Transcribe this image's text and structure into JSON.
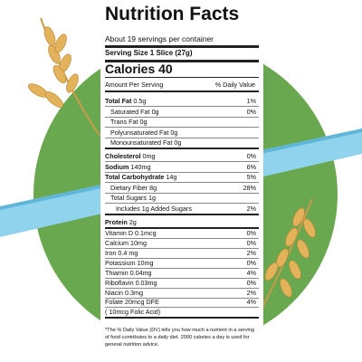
{
  "header": {
    "title": "Nutrition Facts",
    "servings": "About 19 servings per container",
    "serving_size": "Serving Size 1 Slice (27g)",
    "calories": "Calories 40",
    "amount_per_serving": "Amount Per Serving",
    "daily_value_heading": "% Daily Value"
  },
  "rows": [
    {
      "name": "Total Fat",
      "amount": "0.5g",
      "dv": "1%"
    },
    {
      "name": "Saturated Fat",
      "amount": "0g",
      "dv": "0%"
    },
    {
      "name": "Trans Fat",
      "amount": "0g"
    },
    {
      "name": "Polyunsaturated Fat",
      "amount": "0g"
    },
    {
      "name": "Monounsaturated Fat",
      "amount": "0g"
    },
    {
      "name": "Cholesterol",
      "amount": "0mg",
      "dv": "0%"
    },
    {
      "name": "Sodium",
      "amount": "140mg",
      "dv": "6%"
    },
    {
      "name": "Total Carbohydrate",
      "amount": "14g",
      "dv": "5%"
    },
    {
      "name": "Dietary Fiber",
      "amount": "8g",
      "dv": "28%"
    },
    {
      "name": "Total Sugars",
      "amount": "1g"
    },
    {
      "name": "Includes 1g Added Sugars",
      "dv": "2%"
    },
    {
      "name": "Protein",
      "amount": "2g"
    },
    {
      "name": "Vitamin D",
      "amount": "0.1mcg",
      "dv": "0%"
    },
    {
      "name": "Calcium",
      "amount": "10mg",
      "dv": "0%"
    },
    {
      "name": "Iron",
      "amount": "0.4 mg",
      "dv": "2%"
    },
    {
      "name": "Potassium",
      "amount": "10mg",
      "dv": "0%"
    },
    {
      "name": "Thiamin",
      "amount": "0.04mg",
      "dv": "4%"
    },
    {
      "name": "Riboflavin",
      "amount": "0.03mg",
      "dv": "0%"
    },
    {
      "name": "Niacin",
      "amount": "0.3mg",
      "dv": "2%"
    },
    {
      "name": "Folate",
      "amount": "20mcg DFE",
      "dv": "4%"
    },
    {
      "name": "( 10mcg Folic Acid)"
    }
  ],
  "footnote": "*The % Daily Value (DV) tells you how much a nutrient in a serving of food contributes to a daily diet. 2000 calories a day is used for general nutrition advice."
}
